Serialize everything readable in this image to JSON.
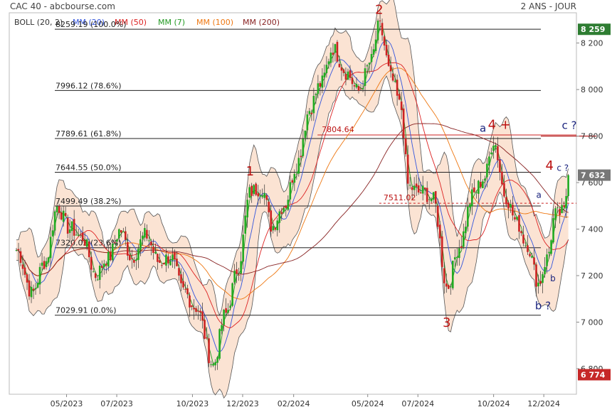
{
  "header": {
    "title": "CAC 40 - abcbourse.com",
    "period": "2 ANS - JOUR"
  },
  "legend": [
    {
      "label": "BOLL (20, 2)",
      "color": "#333333"
    },
    {
      "label": "MM (20)",
      "color": "#3355dd"
    },
    {
      "label": "MM (50)",
      "color": "#dd2222"
    },
    {
      "label": "MM (7)",
      "color": "#229922"
    },
    {
      "label": "MM (100)",
      "color": "#ee7711"
    },
    {
      "label": "MM (200)",
      "color": "#882222"
    }
  ],
  "colors": {
    "candle_up": "#22aa22",
    "candle_down": "#cc2222",
    "bollinger_fill": "#fbe3d3",
    "bollinger_line": "#555555",
    "wave_label": "#bb1111",
    "sub_wave_label": "#1a237e",
    "last_price_badge": "#777777",
    "high_badge": "#2e7d32",
    "low_badge": "#c62828"
  },
  "chart_data": {
    "type": "candlestick",
    "title": "CAC 40",
    "ylim": [
      6690,
      8330
    ],
    "y_ticks": [
      6800,
      7000,
      7200,
      7400,
      7600,
      7800,
      8000,
      8200
    ],
    "x_ticks": [
      "05/2023",
      "07/2023",
      "10/2023",
      "12/2023",
      "02/2024",
      "05/2024",
      "07/2024",
      "10/2024",
      "12/2024"
    ],
    "x_range": [
      "2023-03-01",
      "2025-01-01"
    ],
    "price_path": [
      {
        "d": "2023-03-01",
        "v": 7320
      },
      {
        "d": "2023-03-20",
        "v": 7100
      },
      {
        "d": "2023-04-05",
        "v": 7250
      },
      {
        "d": "2023-04-20",
        "v": 7520
      },
      {
        "d": "2023-05-05",
        "v": 7420
      },
      {
        "d": "2023-05-20",
        "v": 7350
      },
      {
        "d": "2023-06-05",
        "v": 7180
      },
      {
        "d": "2023-06-20",
        "v": 7280
      },
      {
        "d": "2023-07-05",
        "v": 7420
      },
      {
        "d": "2023-07-20",
        "v": 7280
      },
      {
        "d": "2023-08-05",
        "v": 7350
      },
      {
        "d": "2023-08-20",
        "v": 7250
      },
      {
        "d": "2023-09-05",
        "v": 7300
      },
      {
        "d": "2023-09-20",
        "v": 7150
      },
      {
        "d": "2023-10-05",
        "v": 7050
      },
      {
        "d": "2023-10-26",
        "v": 6800
      },
      {
        "d": "2023-11-10",
        "v": 7050
      },
      {
        "d": "2023-11-25",
        "v": 7250
      },
      {
        "d": "2023-12-10",
        "v": 7550
      },
      {
        "d": "2023-12-25",
        "v": 7550
      },
      {
        "d": "2024-01-05",
        "v": 7400
      },
      {
        "d": "2024-01-20",
        "v": 7520
      },
      {
        "d": "2024-02-05",
        "v": 7700
      },
      {
        "d": "2024-02-20",
        "v": 7900
      },
      {
        "d": "2024-03-05",
        "v": 8000
      },
      {
        "d": "2024-03-20",
        "v": 8180
      },
      {
        "d": "2024-04-05",
        "v": 8100
      },
      {
        "d": "2024-04-20",
        "v": 8000
      },
      {
        "d": "2024-05-05",
        "v": 8100
      },
      {
        "d": "2024-05-15",
        "v": 8250
      },
      {
        "d": "2024-05-30",
        "v": 8050
      },
      {
        "d": "2024-06-10",
        "v": 7950
      },
      {
        "d": "2024-06-20",
        "v": 7600
      },
      {
        "d": "2024-07-05",
        "v": 7550
      },
      {
        "d": "2024-07-20",
        "v": 7500
      },
      {
        "d": "2024-08-05",
        "v": 7150
      },
      {
        "d": "2024-08-20",
        "v": 7350
      },
      {
        "d": "2024-09-05",
        "v": 7550
      },
      {
        "d": "2024-09-20",
        "v": 7600
      },
      {
        "d": "2024-10-01",
        "v": 7760
      },
      {
        "d": "2024-10-15",
        "v": 7550
      },
      {
        "d": "2024-10-30",
        "v": 7450
      },
      {
        "d": "2024-11-10",
        "v": 7350
      },
      {
        "d": "2024-11-25",
        "v": 7150
      },
      {
        "d": "2024-12-05",
        "v": 7250
      },
      {
        "d": "2024-12-15",
        "v": 7450
      },
      {
        "d": "2024-12-25",
        "v": 7480
      },
      {
        "d": "2024-12-31",
        "v": 7632
      }
    ],
    "fibonacci_levels": [
      {
        "label": "8259.19  (100.0%)",
        "value": 8259.19
      },
      {
        "label": "7996.12  (78.6%)",
        "value": 7996.12
      },
      {
        "label": "7789.61  (61.8%)",
        "value": 7789.61
      },
      {
        "label": "7644.55  (50.0%)",
        "value": 7644.55
      },
      {
        "label": "7499.49  (38.2%)",
        "value": 7499.49
      },
      {
        "label": "7320.02  (23.6%)",
        "value": 7320.02
      },
      {
        "label": "7029.91  (0.0%)",
        "value": 7029.91
      }
    ],
    "horizontal_lines": [
      {
        "label": "7804.64",
        "value": 7804.64,
        "start": "2024-03-01"
      },
      {
        "label": "7511.02",
        "value": 7511.02,
        "start": "2024-05-15",
        "dashed": true
      }
    ],
    "wave_labels": [
      {
        "text": "1",
        "d": "2023-12-10",
        "v": 7630,
        "kind": "major"
      },
      {
        "text": "2",
        "d": "2024-05-15",
        "v": 8325,
        "kind": "major"
      },
      {
        "text": "3",
        "d": "2024-08-05",
        "v": 6980,
        "kind": "major"
      },
      {
        "text": "4 +",
        "d": "2024-10-08",
        "v": 7830,
        "kind": "major"
      },
      {
        "text": "4",
        "d": "2024-12-08",
        "v": 7655,
        "kind": "major"
      },
      {
        "text": "a",
        "d": "2024-09-18",
        "v": 7818,
        "kind": "minor"
      },
      {
        "text": "c ?",
        "d": "2025-01-08",
        "v": 7830,
        "kind": "minor"
      },
      {
        "text": "c ?",
        "d": "2024-12-24",
        "v": 7650,
        "kind": "minor-small"
      },
      {
        "text": "a",
        "d": "2024-11-25",
        "v": 7535,
        "kind": "minor-small"
      },
      {
        "text": "b",
        "d": "2024-12-12",
        "v": 7175,
        "kind": "minor-small"
      },
      {
        "text": "b ?",
        "d": "2024-11-30",
        "v": 7055,
        "kind": "minor"
      }
    ],
    "price_badges": [
      {
        "label": "8 259",
        "value": 8259,
        "kind": "high"
      },
      {
        "label": "7 632",
        "value": 7632,
        "kind": "last"
      },
      {
        "label": "6 774",
        "value": 6774,
        "kind": "low"
      }
    ],
    "right_axis_line": {
      "value": 7800
    }
  }
}
